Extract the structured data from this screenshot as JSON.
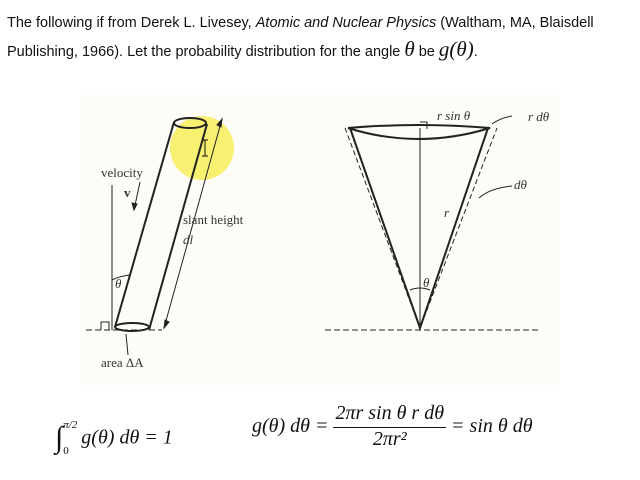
{
  "intro": {
    "text_before": "The following if from Derek L. Livesey, ",
    "book_title": "Atomic and Nuclear Physics",
    "text_after": " (Waltham, MA, Blaisdell Publishing, 1966). Let the probability distribution for the angle ",
    "theta": "θ",
    "be": " be ",
    "g_theta": "g(θ)",
    "period": "."
  },
  "left_diagram": {
    "velocity": "velocity",
    "v": "v",
    "slant_height": "slant height",
    "dl": "dl",
    "theta": "θ",
    "area": "area ΔA"
  },
  "right_diagram": {
    "r_sin_theta": "r sin θ",
    "r_dtheta": "r dθ",
    "dtheta": "dθ",
    "r": "r",
    "theta": "θ"
  },
  "equations": {
    "normalization": {
      "integral": "∫",
      "upper": "π/2",
      "lower": "0",
      "body": "g(θ) dθ = 1"
    },
    "distribution": {
      "lhs": "g(θ) dθ =",
      "numerator": "2πr sin θ r dθ",
      "denominator": "2πr²",
      "rhs": "= sin θ dθ"
    }
  },
  "cursor_highlight_color": "#f7f070"
}
